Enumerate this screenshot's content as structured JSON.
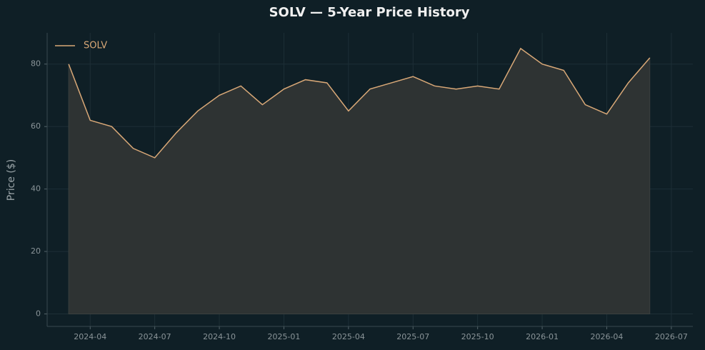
{
  "chart_data": {
    "type": "line",
    "title": "SOLV — 5-Year Price History",
    "ylabel": "Price ($)",
    "x": [
      "2024-03",
      "2024-04",
      "2024-05",
      "2024-06",
      "2024-07",
      "2024-08",
      "2024-09",
      "2024-10",
      "2024-11",
      "2024-12",
      "2025-01",
      "2025-02",
      "2025-03",
      "2025-04",
      "2025-05",
      "2025-06",
      "2025-07",
      "2025-08",
      "2025-09",
      "2025-10",
      "2025-11",
      "2025-12",
      "2026-01",
      "2026-02",
      "2026-03",
      "2026-04",
      "2026-05",
      "2026-06"
    ],
    "series": [
      {
        "name": "SOLV",
        "color": "#d9a877",
        "fill": "#2e3333",
        "values": [
          80,
          62,
          60,
          53,
          50,
          58,
          65,
          70,
          73,
          67,
          72,
          75,
          74,
          65,
          72,
          74,
          76,
          73,
          72,
          73,
          72,
          85,
          80,
          78,
          67,
          64,
          74,
          82
        ]
      }
    ],
    "xlim": [
      "2024-02",
      "2026-08"
    ],
    "xticks": [
      "2024-04",
      "2024-07",
      "2024-10",
      "2025-01",
      "2025-04",
      "2025-07",
      "2025-10",
      "2026-01",
      "2026-04",
      "2026-07"
    ],
    "ylim": [
      -4,
      90
    ],
    "yticks": [
      0,
      20,
      40,
      60,
      80
    ],
    "grid": true,
    "legend": "upper-left"
  }
}
